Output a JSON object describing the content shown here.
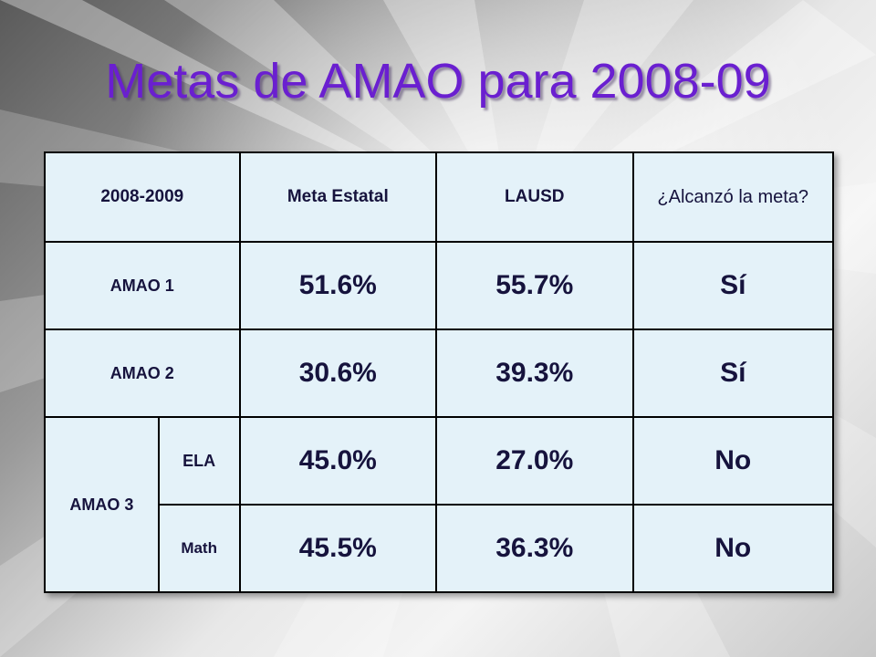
{
  "slide": {
    "title": "Metas de AMAO para 2008-09"
  },
  "table": {
    "headers": {
      "year": "2008-2009",
      "state_goal": "Meta Estatal",
      "district": "LAUSD",
      "met_goal": "¿Alcanzó la meta?"
    },
    "rows": [
      {
        "label": "AMAO 1",
        "state_goal": "51.6%",
        "district": "55.7%",
        "met": "Sí"
      },
      {
        "label": "AMAO 2",
        "state_goal": "30.6%",
        "district": "39.3%",
        "met": "Sí"
      }
    ],
    "amao3": {
      "label": "AMAO 3",
      "sub": [
        {
          "label": "ELA",
          "state_goal": "45.0%",
          "district": "27.0%",
          "met": "No"
        },
        {
          "label": "Math",
          "state_goal": "45.5%",
          "district": "36.3%",
          "met": "No"
        }
      ]
    }
  },
  "colors": {
    "title": "#6a1fd0",
    "table_fill": "#e4f2f9",
    "text": "#16133d"
  }
}
